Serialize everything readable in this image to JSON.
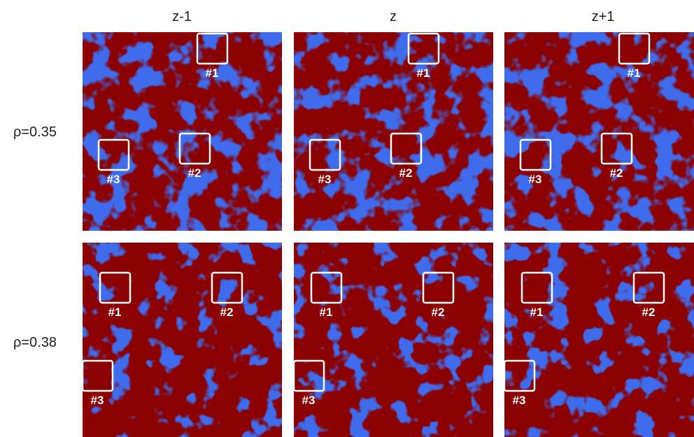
{
  "columns": [
    "z-1",
    "z",
    "z+1"
  ],
  "rows": [
    {
      "label": "ρ=0.35",
      "boxes": [
        "#1",
        "#2",
        "#3"
      ]
    },
    {
      "label": "ρ=0.38",
      "boxes": [
        "#1",
        "#2",
        "#3"
      ]
    }
  ]
}
